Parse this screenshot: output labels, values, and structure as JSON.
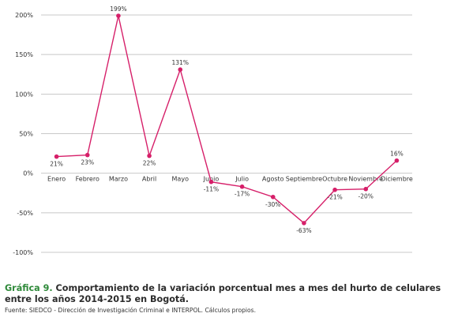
{
  "chart_data": {
    "type": "line",
    "categories": [
      "Enero",
      "Febrero",
      "Marzo",
      "Abril",
      "Mayo",
      "Junio",
      "Julio",
      "Agosto",
      "Septiembre",
      "Octubre",
      "Noviembre",
      "Diciembre"
    ],
    "values": [
      21,
      23,
      199,
      22,
      131,
      -11,
      -17,
      -30,
      -63,
      -21,
      -20,
      16
    ],
    "labels": [
      "21%",
      "23%",
      "199%",
      "22%",
      "131%",
      "-11%",
      "-17%",
      "-30%",
      "-63%",
      "-21%",
      "-20%",
      "16%"
    ],
    "ylim": [
      -100,
      200
    ],
    "yticks": [
      200,
      150,
      100,
      50,
      0,
      -50,
      -100
    ],
    "ytick_labels": [
      "200%",
      "150%",
      "100%",
      "50%",
      "0%",
      "-50%",
      "-100%"
    ],
    "grid": true,
    "line_color": "#d61f69",
    "grid_color": "#c8c8c8"
  },
  "caption": {
    "label": "Gráfica 9.",
    "text": " Comportamiento de la variación porcentual mes a mes del hurto de celulares entre los años 2014-2015 en Bogotá.",
    "label_color": "#2f8a3a"
  },
  "source": "Fuente: SIEDCO - Dirección de Investigación Criminal e INTERPOL. Cálculos propios."
}
